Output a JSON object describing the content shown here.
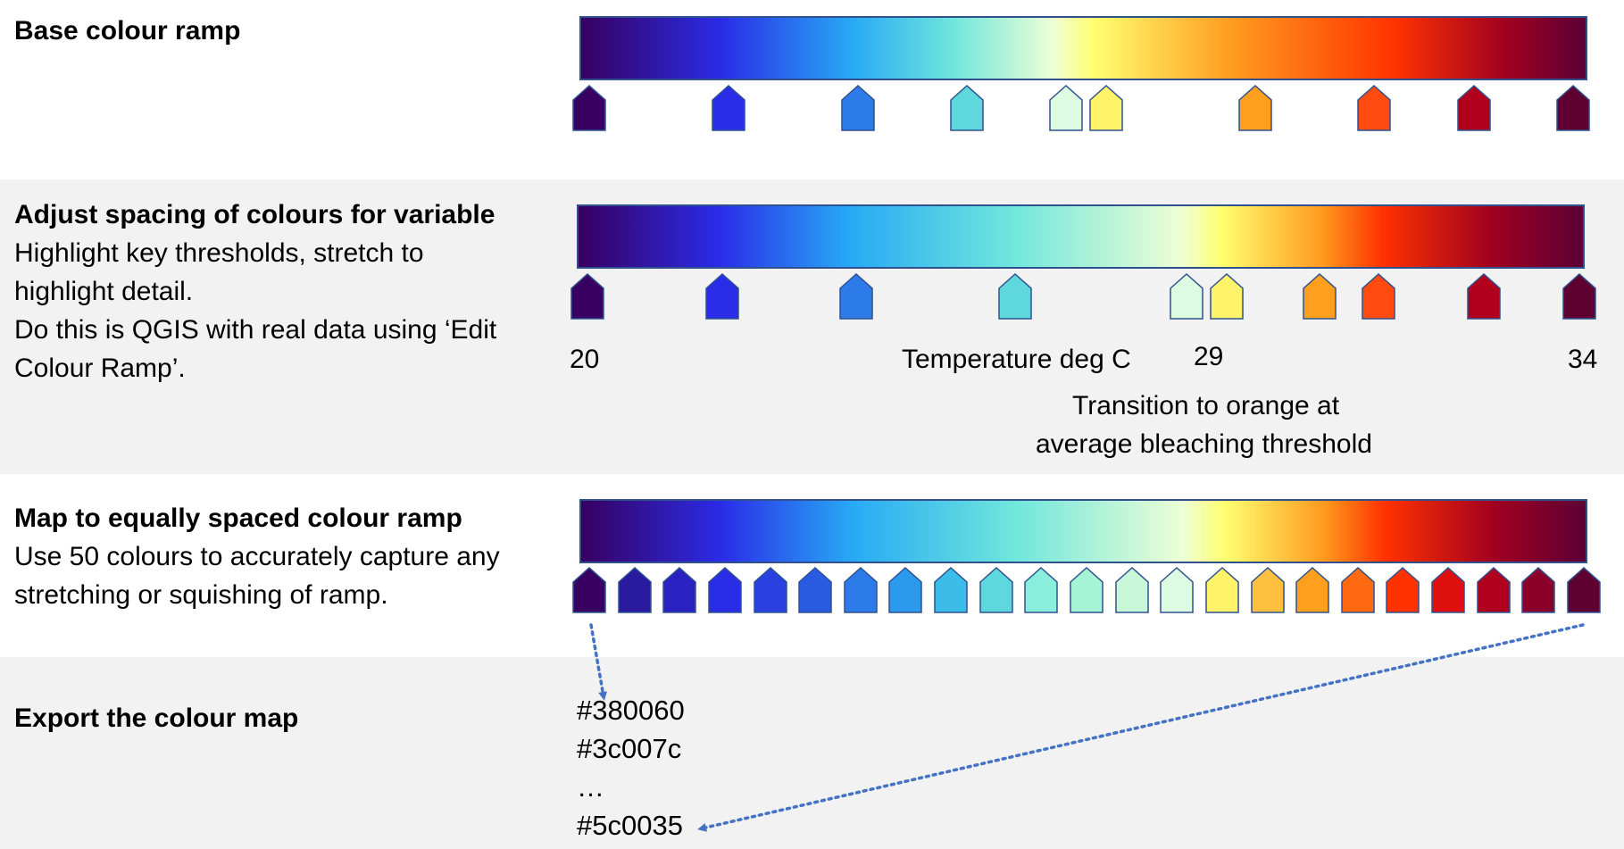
{
  "sections": {
    "base": {
      "heading": "Base colour ramp",
      "gradient": [
        {
          "pos": 0,
          "color": "#380060"
        },
        {
          "pos": 0.14,
          "color": "#2a2ce8"
        },
        {
          "pos": 0.27,
          "color": "#27aaf5"
        },
        {
          "pos": 0.37,
          "color": "#6fe6dc"
        },
        {
          "pos": 0.47,
          "color": "#eefed5"
        },
        {
          "pos": 0.51,
          "color": "#ffff70"
        },
        {
          "pos": 0.65,
          "color": "#ff9a1e"
        },
        {
          "pos": 0.81,
          "color": "#ff3200"
        },
        {
          "pos": 0.92,
          "color": "#a00020"
        },
        {
          "pos": 1,
          "color": "#5c0035"
        }
      ],
      "stops": [
        {
          "pos": 0.0,
          "color": "#380060"
        },
        {
          "pos": 0.14,
          "color": "#2a2ce8"
        },
        {
          "pos": 0.27,
          "color": "#2c7be8"
        },
        {
          "pos": 0.38,
          "color": "#5ed8dd"
        },
        {
          "pos": 0.48,
          "color": "#ddfbe0"
        },
        {
          "pos": 0.52,
          "color": "#fff36a"
        },
        {
          "pos": 0.67,
          "color": "#ff9f1e"
        },
        {
          "pos": 0.79,
          "color": "#ff4a10"
        },
        {
          "pos": 0.89,
          "color": "#b0001e"
        },
        {
          "pos": 0.99,
          "color": "#5e0030"
        }
      ]
    },
    "adjust": {
      "heading": "Adjust spacing of colours for variable",
      "lines": [
        "Highlight key thresholds, stretch to",
        "highlight detail.",
        "Do this is QGIS with real data using ‘Edit",
        "Colour Ramp’."
      ],
      "gradient": [
        {
          "pos": 0,
          "color": "#380060"
        },
        {
          "pos": 0.14,
          "color": "#2a2ce8"
        },
        {
          "pos": 0.27,
          "color": "#27aaf5"
        },
        {
          "pos": 0.43,
          "color": "#6fe6dc"
        },
        {
          "pos": 0.6,
          "color": "#eefed5"
        },
        {
          "pos": 0.64,
          "color": "#ffff70"
        },
        {
          "pos": 0.74,
          "color": "#ff9a1e"
        },
        {
          "pos": 0.8,
          "color": "#ff3200"
        },
        {
          "pos": 0.91,
          "color": "#a00020"
        },
        {
          "pos": 1,
          "color": "#5c0035"
        }
      ],
      "stops": [
        {
          "pos": 0.0,
          "color": "#380060"
        },
        {
          "pos": 0.135,
          "color": "#2a2ce8"
        },
        {
          "pos": 0.27,
          "color": "#2c7be8"
        },
        {
          "pos": 0.43,
          "color": "#5ed8dd"
        },
        {
          "pos": 0.602,
          "color": "#ddfbe0"
        },
        {
          "pos": 0.642,
          "color": "#fff36a"
        },
        {
          "pos": 0.735,
          "color": "#ff9f1e"
        },
        {
          "pos": 0.795,
          "color": "#ff4a10"
        },
        {
          "pos": 0.9,
          "color": "#b0001e"
        },
        {
          "pos": 0.996,
          "color": "#5e0030"
        }
      ],
      "axis_min": "20",
      "axis_label": "Temperature deg C",
      "axis_mid": "29",
      "axis_max": "34",
      "note_lines": [
        "Transition to orange at",
        "average bleaching threshold"
      ]
    },
    "equal": {
      "heading": "Map to equally spaced colour ramp",
      "lines": [
        "Use 50 colours to accurately capture any",
        "stretching or squishing of ramp."
      ],
      "gradient": [
        {
          "pos": 0,
          "color": "#380060"
        },
        {
          "pos": 0.14,
          "color": "#2a2ce8"
        },
        {
          "pos": 0.27,
          "color": "#27aaf5"
        },
        {
          "pos": 0.43,
          "color": "#6fe6dc"
        },
        {
          "pos": 0.6,
          "color": "#eefed5"
        },
        {
          "pos": 0.64,
          "color": "#ffff70"
        },
        {
          "pos": 0.74,
          "color": "#ff9a1e"
        },
        {
          "pos": 0.8,
          "color": "#ff3200"
        },
        {
          "pos": 0.91,
          "color": "#a00020"
        },
        {
          "pos": 1,
          "color": "#5c0035"
        }
      ],
      "stop_colors": [
        "#380060",
        "#2a1aa0",
        "#2a22c0",
        "#2a2ce8",
        "#2a40e0",
        "#2a5ae0",
        "#2c7be8",
        "#2c9aec",
        "#3cbce8",
        "#5ed8dd",
        "#8aeedc",
        "#a6f4d6",
        "#c8f8d8",
        "#ddfbe0",
        "#fff36a",
        "#ffc040",
        "#ff9f1e",
        "#ff6a10",
        "#ff3200",
        "#e01010",
        "#b0001e",
        "#8a0028",
        "#5e0030"
      ]
    },
    "export": {
      "heading": "Export the colour map",
      "hex_lines": [
        "#380060",
        "#3c007c",
        "…",
        "#5c0035"
      ]
    }
  },
  "styles": {
    "marker_stroke": "#2f528f",
    "arrow_color": "#4472c4",
    "band_gray": "#f2f2f2"
  }
}
